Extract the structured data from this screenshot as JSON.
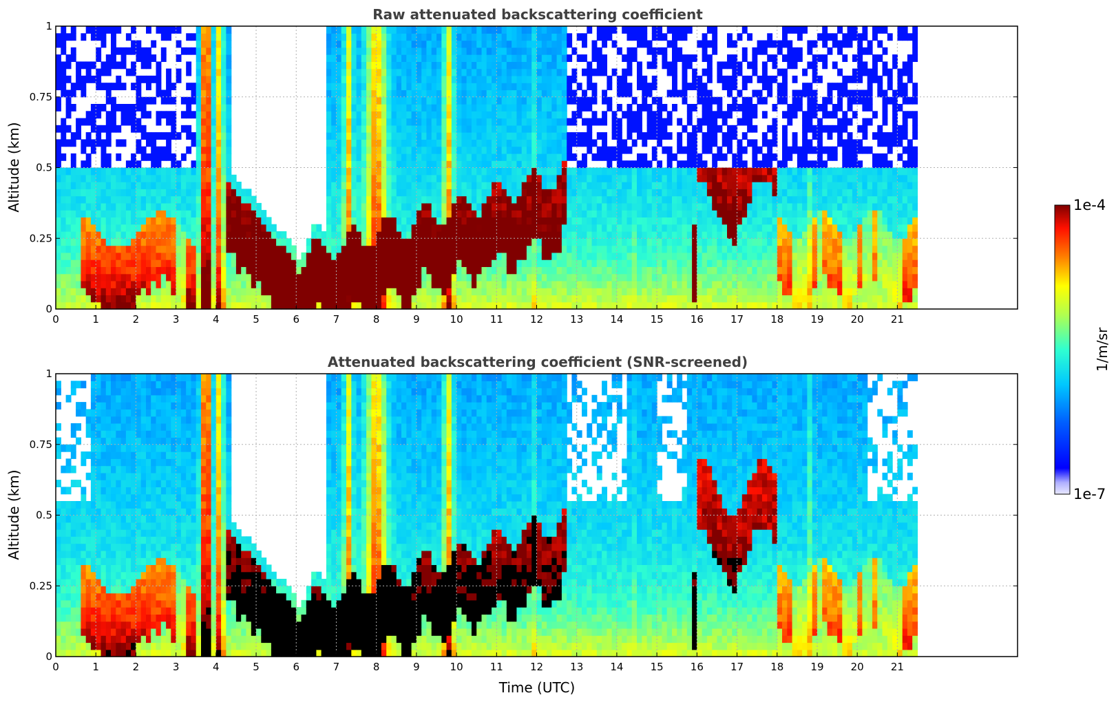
{
  "chart_data": [
    {
      "type": "heatmap",
      "title": "Raw attenuated backscattering coefficient",
      "xlabel": "",
      "ylabel": "Altitude (km)",
      "xlim": [
        0,
        24
      ],
      "ylim": [
        0,
        1
      ],
      "x_ticks": [
        "0",
        "1",
        "2",
        "3",
        "4",
        "5",
        "6",
        "7",
        "8",
        "9",
        "10",
        "11",
        "12",
        "13",
        "14",
        "15",
        "16",
        "17",
        "18",
        "19",
        "20",
        "21"
      ],
      "y_ticks": [
        "0",
        "0.25",
        "0.5",
        "0.75",
        "1"
      ],
      "data_end_hour": 21.5,
      "screened": false,
      "grid": true
    },
    {
      "type": "heatmap",
      "title": "Attenuated backscattering coefficient (SNR-screened)",
      "xlabel": "Time (UTC)",
      "ylabel": "Altitude (km)",
      "xlim": [
        0,
        24
      ],
      "ylim": [
        0,
        1
      ],
      "x_ticks": [
        "0",
        "1",
        "2",
        "3",
        "4",
        "5",
        "6",
        "7",
        "8",
        "9",
        "10",
        "11",
        "12",
        "13",
        "14",
        "15",
        "16",
        "17",
        "18",
        "19",
        "20",
        "21"
      ],
      "y_ticks": [
        "0",
        "0.25",
        "0.5",
        "0.75",
        "1"
      ],
      "data_end_hour": 21.5,
      "screened": true,
      "grid": true
    }
  ],
  "colorbar": {
    "label": "1/m/sr",
    "max_label": "1e-4",
    "min_label": "1e-7",
    "scale": "log"
  }
}
